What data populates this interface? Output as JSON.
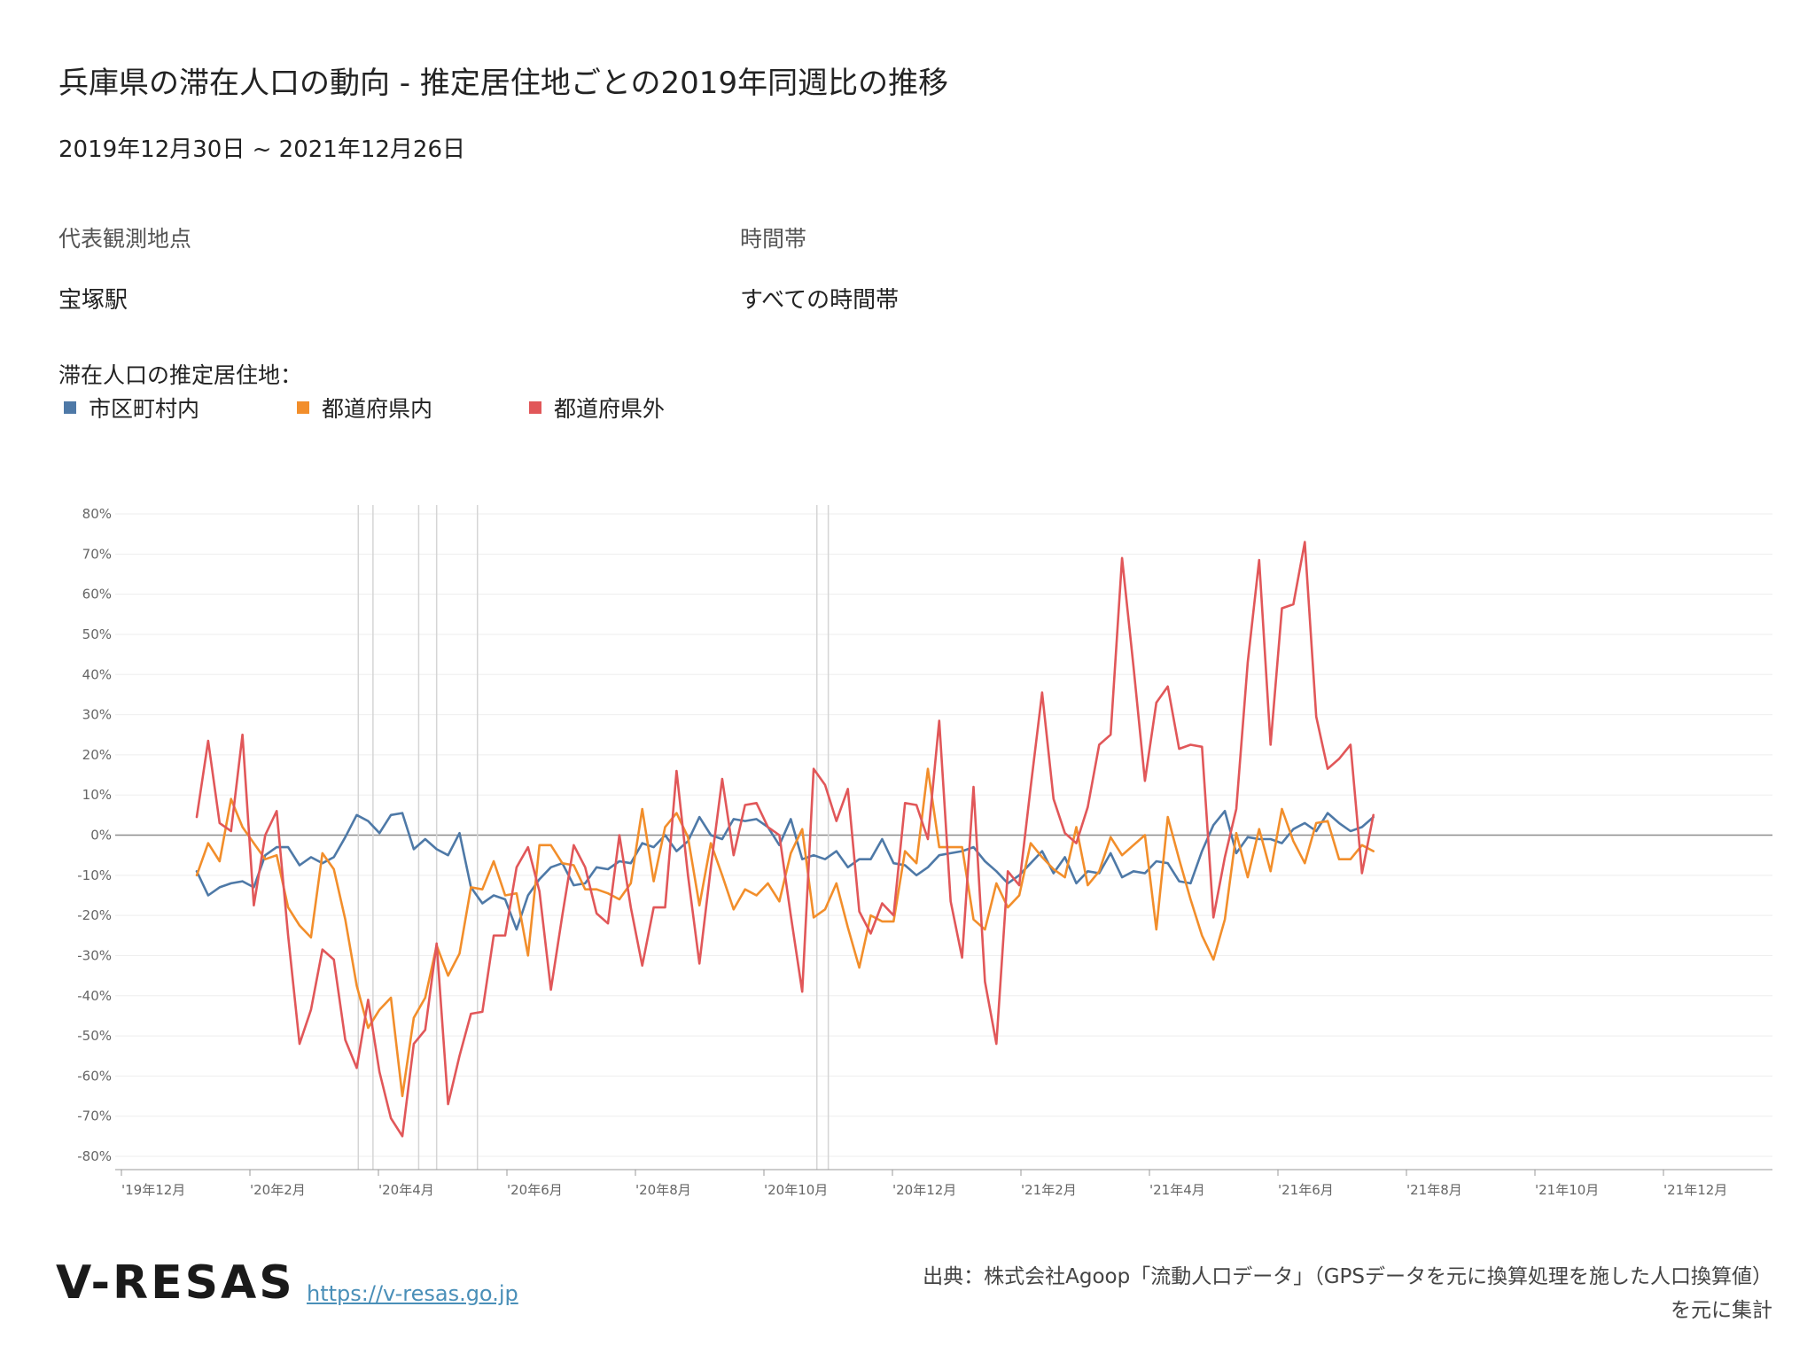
{
  "header": {
    "title": "兵庫県の滞在人口の動向 - 推定居住地ごとの2019年同週比の推移",
    "date_range": "2019年12月30日 ~ 2021年12月26日"
  },
  "filters": {
    "location_label": "代表観測地点",
    "location_value": "宝塚駅",
    "time_label": "時間帯",
    "time_value": "すべての時間帯"
  },
  "legend": {
    "title": "滞在人口の推定居住地：",
    "items": [
      {
        "label": "市区町村内",
        "color": "#4e79a7"
      },
      {
        "label": "都道府県内",
        "color": "#f28e2b"
      },
      {
        "label": "都道府県外",
        "color": "#e15759"
      }
    ]
  },
  "footer": {
    "logo": "V-RESAS",
    "url": "https://v-resas.go.jp",
    "source_line1": "出典：株式会社Agoop「流動人口データ」（GPSデータを元に換算処理を施した人口換算値）",
    "source_line2": "を元に集計"
  },
  "chart_data": {
    "type": "line",
    "x_unit": "week",
    "x_start": "2019-12-30",
    "x_tick_labels": [
      "'19年12月",
      "'20年2月",
      "'20年4月",
      "'20年6月",
      "'20年8月",
      "'20年10月",
      "'20年12月",
      "'21年2月",
      "'21年4月",
      "'21年6月",
      "'21年8月",
      "'21年10月",
      "'21年12月"
    ],
    "y_ticks": [
      80,
      70,
      60,
      50,
      40,
      30,
      20,
      10,
      0,
      -10,
      -20,
      -30,
      -40,
      -50,
      -60,
      -70,
      -80
    ],
    "y_unit": "%",
    "ylim": [
      -80,
      80
    ],
    "reference_lines": [
      "2020-04-07",
      "2020-04-16",
      "2020-05-14",
      "2020-05-25",
      "2020-06-19",
      "2021-01-13",
      "2021-01-20"
    ],
    "series": [
      {
        "name": "市区町村内",
        "color": "#4e79a7",
        "values": [
          -9,
          -15,
          -13,
          -12,
          -11.5,
          -13,
          -5,
          -3,
          -3,
          -7.5,
          -5.5,
          -7,
          -5.5,
          -0.5,
          5,
          3.5,
          0.5,
          5,
          5.5,
          -3.5,
          -1,
          -3.5,
          -5,
          0.5,
          -13,
          -17,
          -15,
          -16,
          -23.5,
          -15,
          -11,
          -8,
          -7,
          -12.5,
          -12,
          -8,
          -8.5,
          -6.5,
          -7,
          -2,
          -3,
          0,
          -4,
          -1.5,
          4.5,
          0,
          -1,
          4,
          3.5,
          4,
          2,
          -2.5,
          4,
          -6,
          -5,
          -6,
          -4,
          -8,
          -6,
          -6,
          -1,
          -7,
          -7.5,
          -10,
          -8,
          -5,
          -4.5,
          -4,
          -3,
          -6.5,
          -9,
          -12,
          -10,
          -7,
          -4,
          -9.5,
          -5.5,
          -12,
          -9,
          -9.5,
          -4.5,
          -10.5,
          -9,
          -9.5,
          -6.5,
          -7,
          -11.5,
          -12,
          -4,
          2.5,
          6,
          -4.5,
          -0.5,
          -1,
          -1,
          -2,
          1.5,
          3,
          1,
          5.5,
          3,
          1,
          2,
          4.5
        ]
      },
      {
        "name": "都道府県内",
        "color": "#f28e2b",
        "values": [
          -10,
          -2,
          -6.5,
          9,
          2,
          -2,
          -6,
          -5,
          -18,
          -22.5,
          -25.5,
          -4.5,
          -8.5,
          -21,
          -37.5,
          -48,
          -43.5,
          -40.5,
          -65,
          -45.5,
          -40.5,
          -27.5,
          -35,
          -29.5,
          -13,
          -13.5,
          -6.5,
          -15,
          -14.5,
          -30,
          -2.5,
          -2.5,
          -7,
          -7.5,
          -13.5,
          -13.5,
          -14.5,
          -16,
          -12,
          6.5,
          -11.5,
          2,
          5.5,
          -0.5,
          -17.5,
          -2,
          -10,
          -18.5,
          -13.5,
          -15,
          -12,
          -16.5,
          -4.5,
          1.5,
          -20.5,
          -18.5,
          -12,
          -23,
          -33,
          -20,
          -21.5,
          -21.5,
          -4,
          -7,
          16.5,
          -3,
          -3,
          -3,
          -21,
          -23.5,
          -12,
          -18,
          -15,
          -2,
          -5.5,
          -8.5,
          -10.5,
          2,
          -12.5,
          -9,
          -0.5,
          -5,
          -2.5,
          0,
          -23.5,
          4.5,
          -6,
          -16,
          -25,
          -31,
          -21,
          0.5,
          -10.5,
          1.5,
          -9,
          6.5,
          -1.5,
          -7,
          3,
          3.5,
          -6,
          -6,
          -2.5,
          -4
        ]
      },
      {
        "name": "都道府県外",
        "color": "#e15759",
        "values": [
          4.5,
          23.5,
          3,
          1,
          25,
          -17.5,
          0,
          6,
          -25,
          -52,
          -43.5,
          -28.5,
          -31,
          -51,
          -58,
          -41,
          -59,
          -70.5,
          -75,
          -52,
          -48.5,
          -27,
          -67,
          -55,
          -44.5,
          -44,
          -25,
          -25,
          -8,
          -3,
          -14,
          -38.5,
          -20,
          -2.5,
          -8,
          -19.5,
          -22,
          0,
          -18,
          -32.5,
          -18,
          -18,
          16,
          -10,
          -32,
          -8,
          14,
          -5,
          7.5,
          8,
          2,
          0,
          -20,
          -39,
          16.5,
          12.5,
          3.5,
          11.5,
          -19,
          -24.5,
          -17,
          -20,
          8,
          7.5,
          -1,
          28.5,
          -16.5,
          -30.5,
          12,
          -36.5,
          -52,
          -9,
          -12.5,
          12,
          35.5,
          9,
          0.5,
          -2,
          7,
          22.5,
          25,
          69,
          42,
          13.5,
          33,
          37,
          21.5,
          22.5,
          22,
          -20.5,
          -5.5,
          6.5,
          43,
          68.5,
          22.5,
          56.5,
          57.5,
          73,
          29.5,
          16.5,
          19,
          22.5,
          -9.5,
          5
        ]
      }
    ]
  }
}
